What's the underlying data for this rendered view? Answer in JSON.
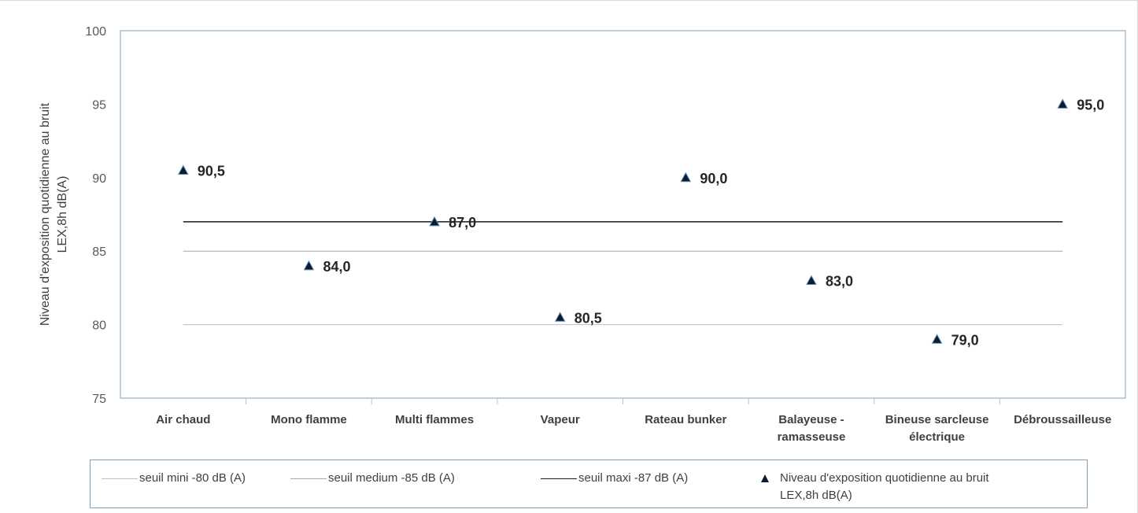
{
  "chart_data": {
    "type": "scatter",
    "categories": [
      "Air chaud",
      "Mono flamme",
      "Multi flammes",
      "Vapeur",
      "Rateau bunker",
      "Balayeuse - ramasseuse",
      "Bineuse sarcleuse électrique",
      "Débroussailleuse"
    ],
    "category_lines": [
      [
        "Air chaud"
      ],
      [
        "Mono flamme"
      ],
      [
        "Multi flammes"
      ],
      [
        "Vapeur"
      ],
      [
        "Rateau bunker"
      ],
      [
        "Balayeuse -",
        "ramasseuse"
      ],
      [
        "Bineuse sarcleuse",
        "électrique"
      ],
      [
        "Débroussailleuse"
      ]
    ],
    "ylabel_lines": [
      "Niveau d'exposition quotidienne au bruit",
      "LEX,8h dB(A)"
    ],
    "ylim": [
      75,
      100
    ],
    "yticks": [
      75,
      80,
      85,
      90,
      95,
      100
    ],
    "legend_position": "bottom",
    "grid": false,
    "series": [
      {
        "name": "Niveau d'exposition quotidienne au bruit LEX,8h dB(A)",
        "name_lines": [
          "Niveau d'exposition quotidienne au bruit",
          "LEX,8h dB(A)"
        ],
        "marker": "triangle",
        "color": "#0d1b2a",
        "values": [
          90.5,
          84.0,
          87.0,
          80.5,
          90.0,
          83.0,
          79.0,
          95.0
        ],
        "labels": [
          "90,5",
          "84,0",
          "87,0",
          "80,5",
          "90,0",
          "83,0",
          "79,0",
          "95,0"
        ]
      }
    ],
    "thresholds": [
      {
        "name": "seuil mini -80 dB (A)",
        "value": 80,
        "color": "#bfbfbf"
      },
      {
        "name": "seuil medium -85 dB (A)",
        "value": 85,
        "color": "#a6a6a6"
      },
      {
        "name": "seuil maxi -87 dB (A)",
        "value": 87,
        "color": "#1a1a1a"
      }
    ]
  }
}
